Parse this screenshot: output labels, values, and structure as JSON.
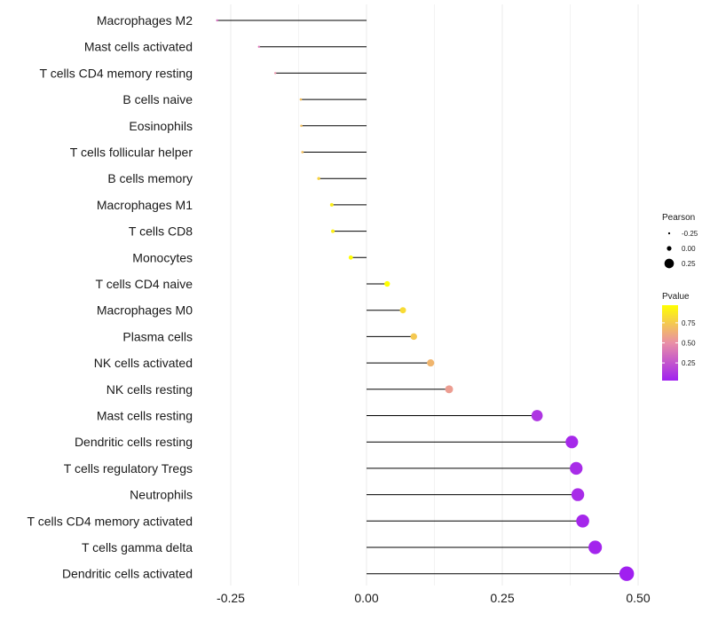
{
  "chart_data": {
    "type": "lollipop",
    "title": "",
    "xlabel": "",
    "ylabel": "",
    "xlim": [
      -0.3,
      0.5
    ],
    "xticks": [
      {
        "value": -0.25,
        "label": "-0.25"
      },
      {
        "value": 0.0,
        "label": "0.00"
      },
      {
        "value": 0.25,
        "label": "0.25"
      },
      {
        "value": 0.5,
        "label": "0.50"
      }
    ],
    "grid": true,
    "categories": [
      "Macrophages M2",
      "Mast cells activated",
      "T cells CD4 memory resting",
      "B cells naive",
      "Eosinophils",
      "T cells follicular helper",
      "B cells memory",
      "Macrophages M1",
      "T cells CD8",
      "Monocytes",
      "T cells CD4 naive",
      "Macrophages M0",
      "Plasma cells",
      "NK cells activated",
      "NK cells resting",
      "Mast cells resting",
      "Dendritic cells resting",
      "T cells regulatory  Tregs ",
      "Neutrophils",
      "T cells CD4 memory activated",
      "T cells gamma delta",
      "Dendritic cells activated"
    ],
    "pearson": [
      -0.275,
      -0.198,
      -0.168,
      -0.121,
      -0.12,
      -0.118,
      -0.088,
      -0.064,
      -0.062,
      -0.029,
      0.038,
      0.067,
      0.087,
      0.118,
      0.152,
      0.314,
      0.378,
      0.386,
      0.389,
      0.398,
      0.421,
      0.479
    ],
    "pvalue": [
      0.35,
      0.4,
      0.5,
      0.7,
      0.7,
      0.7,
      0.78,
      0.9,
      0.9,
      0.96,
      0.97,
      0.82,
      0.74,
      0.66,
      0.56,
      0.12,
      0.07,
      0.08,
      0.08,
      0.06,
      0.05,
      0.03
    ],
    "legend": {
      "size": {
        "title": "Pearson",
        "entries": [
          {
            "label": "-0.25",
            "value": -0.25
          },
          {
            "label": "0.00",
            "value": 0.0
          },
          {
            "label": "0.25",
            "value": 0.25
          }
        ]
      },
      "color": {
        "title": "Pvalue",
        "range": [
          0.03,
          0.97
        ],
        "ticks": [
          {
            "label": "0.75",
            "value": 0.75
          },
          {
            "label": "0.50",
            "value": 0.5
          },
          {
            "label": "0.25",
            "value": 0.25
          }
        ]
      },
      "position": "right"
    },
    "colors": {
      "low": "#a020f0",
      "mid": "#e98fa6",
      "high": "#ffff00",
      "stem": "#000000",
      "grid": "#ebebeb"
    }
  }
}
